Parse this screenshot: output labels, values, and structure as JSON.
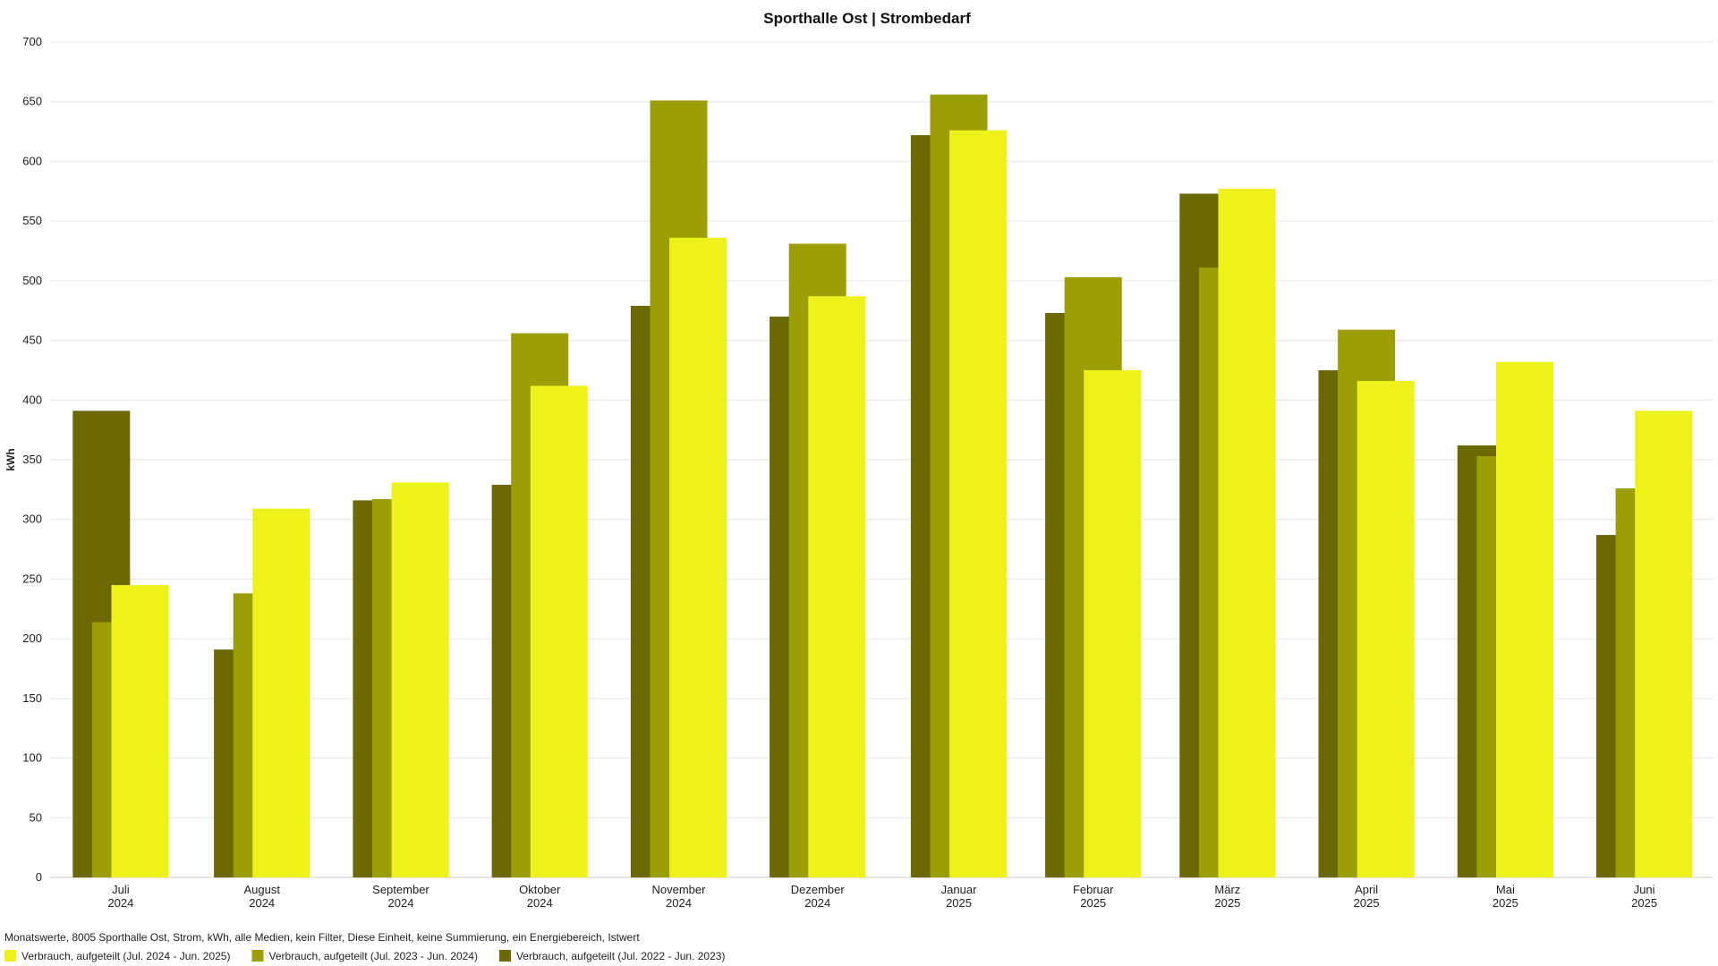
{
  "chart_data": {
    "type": "bar",
    "title": "Sporthalle Ost | Strombedarf",
    "xlabel": "",
    "ylabel": "kWh",
    "ylim": [
      0,
      700
    ],
    "yticks": [
      0,
      50,
      100,
      150,
      200,
      250,
      300,
      350,
      400,
      450,
      500,
      550,
      600,
      650,
      700
    ],
    "grid": true,
    "legend_position": "bottom-left",
    "categories": [
      "Juli 2024",
      "August 2024",
      "September 2024",
      "Oktober 2024",
      "November 2024",
      "Dezember 2024",
      "Januar 2025",
      "Februar 2025",
      "März 2025",
      "April 2025",
      "Mai 2025",
      "Juni 2025"
    ],
    "series": [
      {
        "name": "Verbrauch, aufgeteilt (Jul. 2024 - Jun. 2025)",
        "color": "#eef21b",
        "values": [
          245,
          309,
          331,
          412,
          536,
          487,
          626,
          425,
          577,
          416,
          432,
          391
        ]
      },
      {
        "name": "Verbrauch, aufgeteilt (Jul. 2023 - Jun. 2024)",
        "color": "#9c9e06",
        "values": [
          214,
          238,
          317,
          456,
          651,
          531,
          656,
          503,
          511,
          459,
          353,
          326
        ]
      },
      {
        "name": "Verbrauch, aufgeteilt (Jul. 2022 - Jun. 2023)",
        "color": "#6b6a02",
        "values": [
          391,
          191,
          316,
          329,
          479,
          470,
          622,
          473,
          573,
          425,
          362,
          287
        ]
      }
    ],
    "note": "Monatswerte, 8005 Sporthalle Ost, Strom, kWh, alle Medien, kein Filter, Diese Einheit, keine Summierung, ein Energiebereich, Istwert"
  }
}
